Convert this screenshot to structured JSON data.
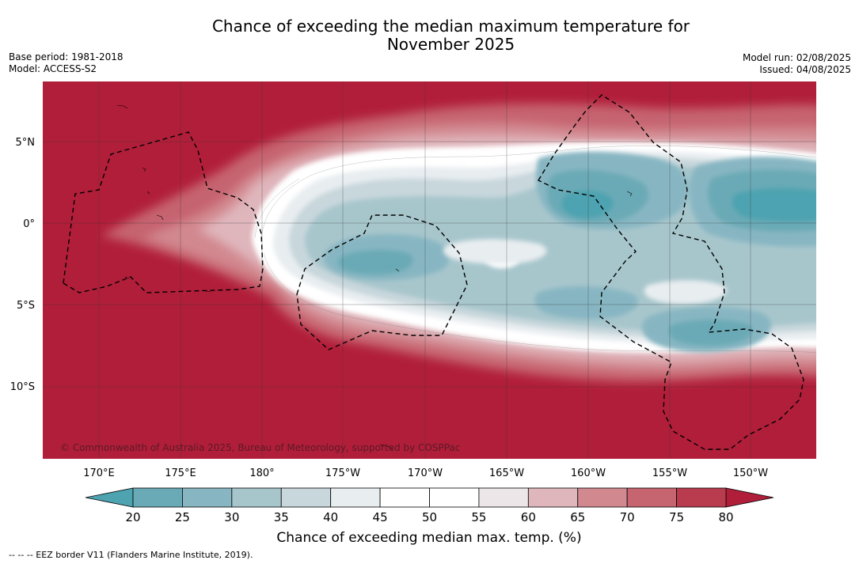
{
  "title_line1": "Chance of exceeding the median maximum temperature for",
  "title_line2": "November 2025",
  "base_period": "Base period: 1981-2018",
  "model": "Model: ACCESS-S2",
  "model_run": "Model run: 02/08/2025",
  "issued": "Issued: 04/08/2025",
  "copyright": "© Commonwealth of Australia 2025, Bureau of Meteorology, supported by COSPPac",
  "lon_ticks": [
    "170°E",
    "175°E",
    "180°",
    "175°W",
    "170°W",
    "165°W",
    "160°W",
    "155°W",
    "150°W"
  ],
  "lat_ticks": [
    "5°N",
    "0°",
    "5°S",
    "10°S"
  ],
  "legend": {
    "values": [
      "20",
      "25",
      "30",
      "35",
      "40",
      "45",
      "50",
      "55",
      "60",
      "65",
      "70",
      "75",
      "80"
    ],
    "colors": [
      "#6aaab6",
      "#87b6c2",
      "#a7c6cc",
      "#c8d7dc",
      "#e8edf0",
      "#ffffff",
      "#ffffff",
      "#ece6e8",
      "#dfb6bc",
      "#d2888f",
      "#c66470",
      "#b83c4e"
    ],
    "low_color": "#4ea3b1",
    "high_color": "#b11e3a",
    "label": "Chance of exceeding median max. temp. (%)"
  },
  "footnote": "--  --  -- EEZ border V11 (Flanders Marine Institute, 2019)."
}
